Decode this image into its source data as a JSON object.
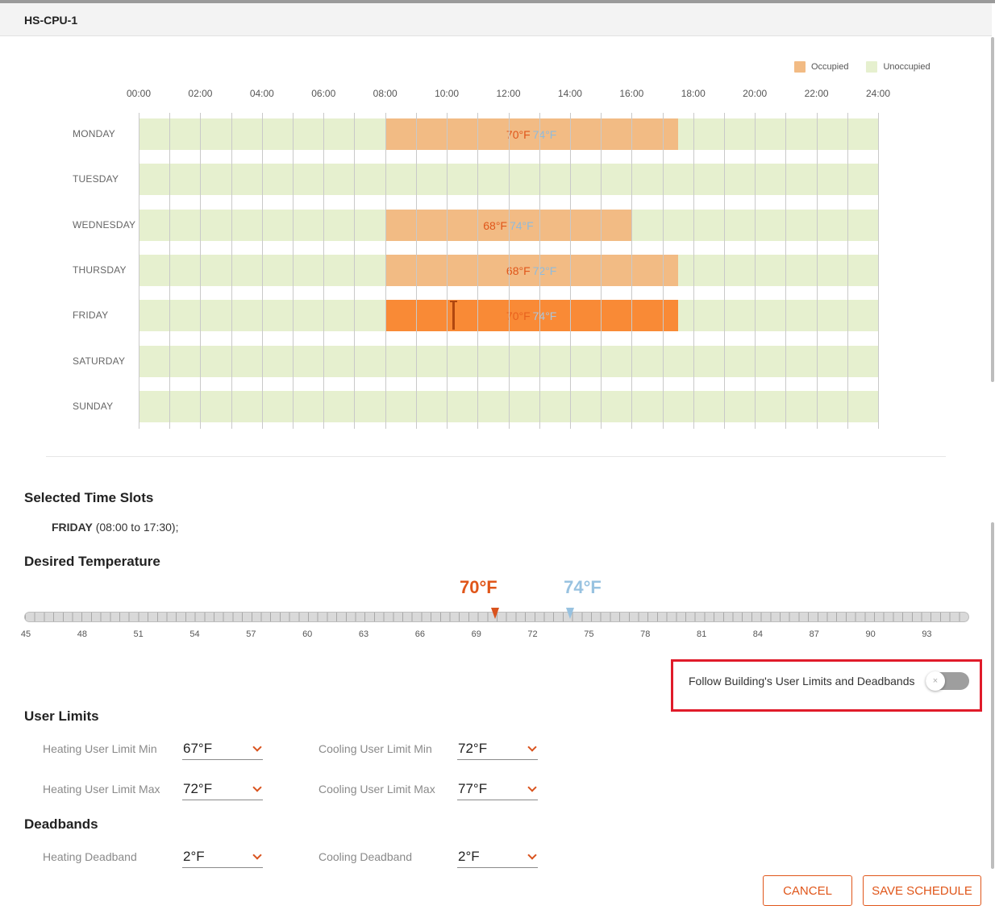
{
  "dialog": {
    "title": "HS-CPU-1"
  },
  "legend": [
    {
      "label": "Occupied",
      "color": "#f2bb84"
    },
    {
      "label": "Unoccupied",
      "color": "#e6f0cf"
    }
  ],
  "schedule": {
    "hours": [
      "00:00",
      "02:00",
      "04:00",
      "06:00",
      "08:00",
      "10:00",
      "12:00",
      "14:00",
      "16:00",
      "18:00",
      "20:00",
      "22:00",
      "24:00"
    ],
    "days": [
      {
        "name": "MONDAY",
        "occupied": {
          "start": "08:00",
          "end": "17:30",
          "heat": "70°F",
          "cool": "74°F"
        }
      },
      {
        "name": "TUESDAY",
        "occupied": null
      },
      {
        "name": "WEDNESDAY",
        "occupied": {
          "start": "08:00",
          "end": "16:00",
          "heat": "68°F",
          "cool": "74°F"
        }
      },
      {
        "name": "THURSDAY",
        "occupied": {
          "start": "08:00",
          "end": "17:30",
          "heat": "68°F",
          "cool": "72°F"
        }
      },
      {
        "name": "FRIDAY",
        "occupied": {
          "start": "08:00",
          "end": "17:30",
          "heat": "70°F",
          "cool": "74°F",
          "selected": true
        }
      },
      {
        "name": "SATURDAY",
        "occupied": null
      },
      {
        "name": "SUNDAY",
        "occupied": null
      }
    ]
  },
  "selected_slots": {
    "title": "Selected Time Slots",
    "day": "FRIDAY",
    "range": "(08:00 to 17:30);"
  },
  "desired_temperature": {
    "title": "Desired Temperature",
    "heat_label": "70°F",
    "cool_label": "74°F",
    "heat_value": 70,
    "cool_value": 74,
    "min": 45,
    "max": 95,
    "ticks": [
      "45",
      "48",
      "51",
      "54",
      "57",
      "60",
      "63",
      "66",
      "69",
      "72",
      "75",
      "78",
      "81",
      "84",
      "87",
      "90",
      "93"
    ]
  },
  "follow_toggle": {
    "label": "Follow Building's User Limits and Deadbands",
    "on": false,
    "knob_glyph": "×"
  },
  "user_limits": {
    "title": "User Limits",
    "heating_min": {
      "label": "Heating User Limit Min",
      "value": "67°F"
    },
    "heating_max": {
      "label": "Heating User Limit Max",
      "value": "72°F"
    },
    "cooling_min": {
      "label": "Cooling User Limit Min",
      "value": "72°F"
    },
    "cooling_max": {
      "label": "Cooling User Limit Max",
      "value": "77°F"
    }
  },
  "deadbands": {
    "title": "Deadbands",
    "heating": {
      "label": "Heating Deadband",
      "value": "2°F"
    },
    "cooling": {
      "label": "Cooling Deadband",
      "value": "2°F"
    }
  },
  "actions": {
    "cancel": "CANCEL",
    "save": "SAVE SCHEDULE"
  }
}
